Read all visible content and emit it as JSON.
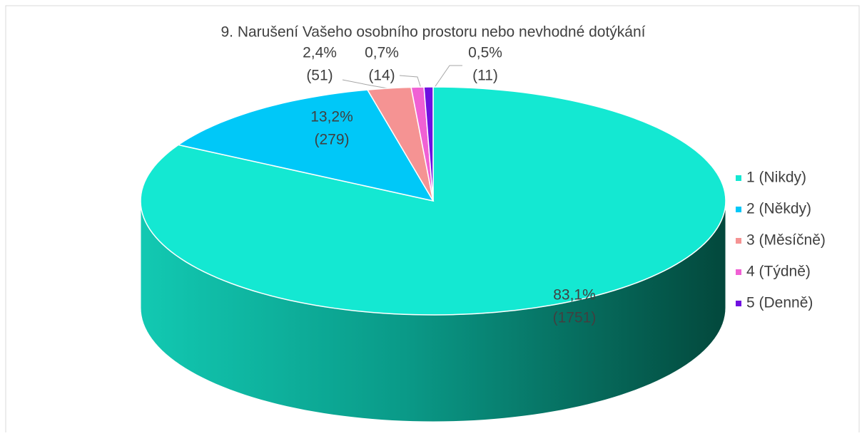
{
  "chart_data": {
    "type": "pie",
    "title": "9. Narušení Vašeho osobního prostoru nebo nevhodné dotýkání",
    "categories": [
      "1 (Nikdy)",
      "2 (Někdy)",
      "3 (Měsíčně)",
      "4 (Týdně)",
      "5 (Denně)"
    ],
    "values": [
      83.1,
      13.2,
      2.4,
      0.7,
      0.5
    ],
    "value_labels": [
      "83,1%",
      "13,2%",
      "2,4%",
      "0,7%",
      "0,5%"
    ],
    "counts": [
      1751,
      279,
      51,
      14,
      11
    ],
    "count_labels": [
      "(1751)",
      "(279)",
      "(51)",
      "(14)",
      "(11)"
    ],
    "colors": [
      "#14e8d2",
      "#00c8f8",
      "#f59393",
      "#f060d4",
      "#7010e0"
    ],
    "legend": "right"
  }
}
